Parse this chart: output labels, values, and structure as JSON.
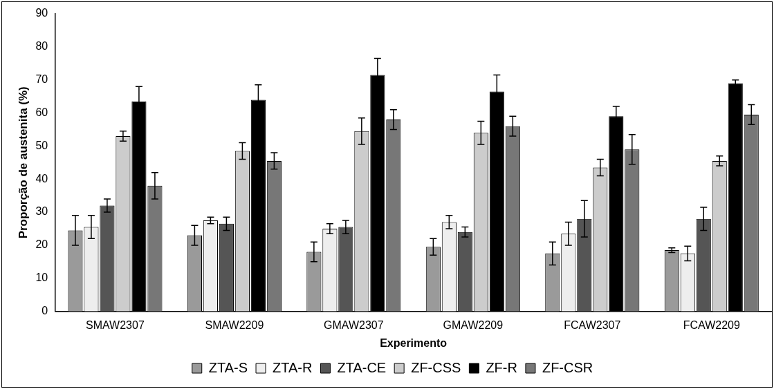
{
  "chart_data": {
    "type": "bar",
    "xlabel": "Experimento",
    "ylabel": "Proporção de austenita (%)",
    "categories": [
      "SMAW2307",
      "SMAW2209",
      "GMAW2307",
      "GMAW2209",
      "FCAW2307",
      "FCAW2209"
    ],
    "series": [
      {
        "name": "ZTA-S",
        "color": "#9a9a9a",
        "values": [
          24.5,
          23,
          18,
          19.5,
          17.5,
          18.5
        ],
        "errors": [
          4.5,
          3,
          3,
          2.5,
          3.5,
          0.7
        ]
      },
      {
        "name": "ZTA-R",
        "color": "#eeeeee",
        "values": [
          25.5,
          27.5,
          25,
          27,
          23.5,
          17.5
        ],
        "errors": [
          3.5,
          1,
          1.5,
          2,
          3.5,
          2.2
        ]
      },
      {
        "name": "ZTA-CE",
        "color": "#555555",
        "values": [
          32,
          26.5,
          25.5,
          24,
          28,
          28
        ],
        "errors": [
          2,
          2,
          2,
          1.5,
          5.5,
          3.5
        ]
      },
      {
        "name": "ZF-CSS",
        "color": "#cccccc",
        "values": [
          53,
          48.5,
          54.5,
          54,
          43.5,
          45.5
        ],
        "errors": [
          1.5,
          2.5,
          4,
          3.5,
          2.5,
          1.5
        ]
      },
      {
        "name": "ZF-R",
        "color": "#000000",
        "values": [
          63.5,
          64,
          71.5,
          66.5,
          59,
          69
        ],
        "errors": [
          4.5,
          4.5,
          5,
          5,
          3,
          1
        ]
      },
      {
        "name": "ZF-CSR",
        "color": "#777777",
        "values": [
          38,
          45.5,
          58,
          56,
          49,
          59.5
        ],
        "errors": [
          4,
          2.5,
          3,
          3,
          4.5,
          3
        ]
      }
    ],
    "ylim": [
      0,
      90
    ],
    "yticks": [
      0,
      10,
      20,
      30,
      40,
      50,
      60,
      70,
      80,
      90
    ],
    "grid": false,
    "legend": "bottom"
  }
}
